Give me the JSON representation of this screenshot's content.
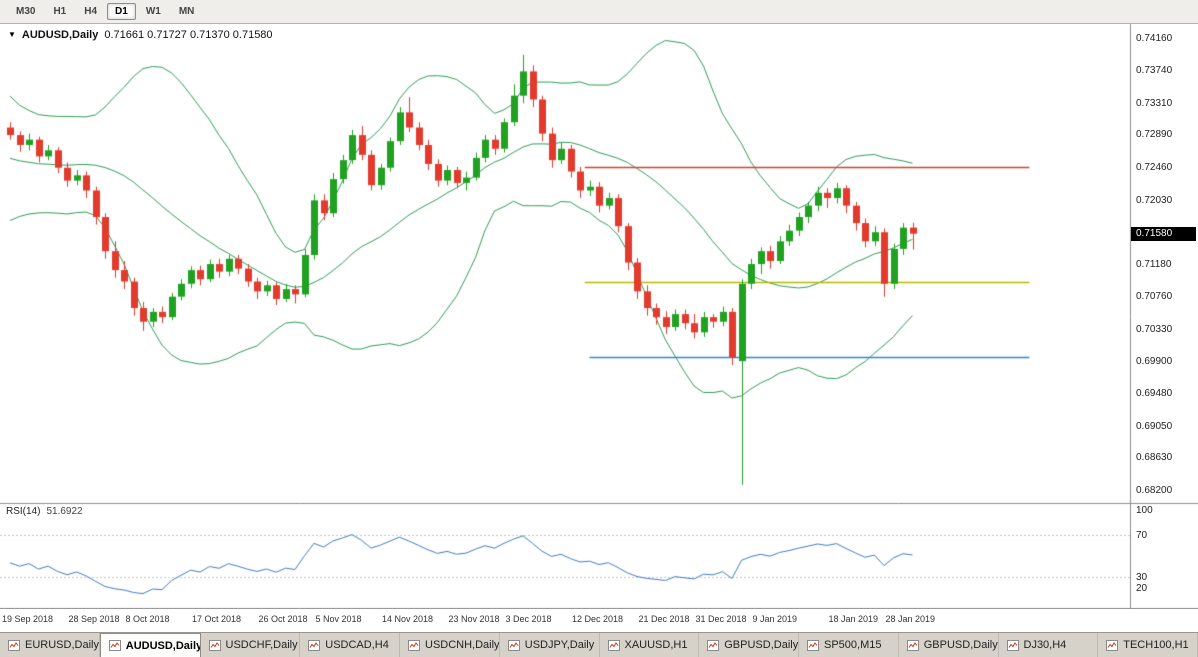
{
  "toolbar": {
    "buttons": [
      {
        "label": "M30",
        "active": false
      },
      {
        "label": "H1",
        "active": false
      },
      {
        "label": "H4",
        "active": false
      },
      {
        "label": "D1",
        "active": true
      },
      {
        "label": "W1",
        "active": false
      },
      {
        "label": "MN",
        "active": false
      }
    ]
  },
  "chart": {
    "title": {
      "symbol": "AUDUSD,Daily",
      "ohlc": "0.71661 0.71727 0.71370 0.71580"
    },
    "current_price": "0.71580",
    "price_axis": [
      "0.74160",
      "0.73740",
      "0.73310",
      "0.72890",
      "0.72460",
      "0.72030",
      "0.71180",
      "0.70760",
      "0.70330",
      "0.69900",
      "0.69480",
      "0.69050",
      "0.68630",
      "0.68200"
    ],
    "colors": {
      "up": "#21a121",
      "down": "#e23b2e",
      "bollinger": "#2e9b57",
      "rsi_line": "#3f7cc4",
      "hline_red": "#cc4034",
      "hline_yellow": "#b9b900",
      "hline_blue": "#2e86d6",
      "price_tag_bg": "#000000"
    }
  },
  "rsi": {
    "label": "RSI(14)",
    "value": "51.6922",
    "axis_labels": [
      "100",
      "70",
      "30",
      "20"
    ]
  },
  "tabs": [
    {
      "label": "EURUSD,Daily",
      "active": false
    },
    {
      "label": "AUDUSD,Daily",
      "active": true
    },
    {
      "label": "USDCHF,Daily",
      "active": false
    },
    {
      "label": "USDCAD,H4",
      "active": false
    },
    {
      "label": "USDCNH,Daily",
      "active": false
    },
    {
      "label": "USDJPY,Daily",
      "active": false
    },
    {
      "label": "XAUUSD,H1",
      "active": false
    },
    {
      "label": "GBPUSD,Daily",
      "active": false
    },
    {
      "label": "SP500,M15",
      "active": false
    },
    {
      "label": "GBPUSD,Daily",
      "active": false
    },
    {
      "label": "DJ30,H4",
      "active": false
    },
    {
      "label": "TECH100,H1",
      "active": false
    }
  ],
  "chart_data": {
    "type": "candlestick",
    "symbol": "AUDUSD",
    "timeframe": "Daily",
    "title": "AUDUSD,Daily",
    "current_bar": {
      "open": 0.71661,
      "high": 0.71727,
      "low": 0.7137,
      "close": 0.7158
    },
    "y_axis": {
      "min": 0.6803,
      "max": 0.74345,
      "ticks": [
        0.7416,
        0.7374,
        0.7331,
        0.7289,
        0.7246,
        0.7203,
        0.7118,
        0.7076,
        0.7033,
        0.699,
        0.6948,
        0.6905,
        0.6863,
        0.682
      ]
    },
    "x_labels": [
      {
        "index": 0,
        "label": "19 Sep 2018"
      },
      {
        "index": 7,
        "label": "28 Sep 2018"
      },
      {
        "index": 13,
        "label": "8 Oct 2018"
      },
      {
        "index": 20,
        "label": "17 Oct 2018"
      },
      {
        "index": 27,
        "label": "26 Oct 2018"
      },
      {
        "index": 33,
        "label": "5 Nov 2018"
      },
      {
        "index": 40,
        "label": "14 Nov 2018"
      },
      {
        "index": 47,
        "label": "23 Nov 2018"
      },
      {
        "index": 53,
        "label": "3 Dec 2018"
      },
      {
        "index": 60,
        "label": "12 Dec 2018"
      },
      {
        "index": 67,
        "label": "21 Dec 2018"
      },
      {
        "index": 73,
        "label": "31 Dec 2018"
      },
      {
        "index": 79,
        "label": "9 Jan 2019"
      },
      {
        "index": 87,
        "label": "18 Jan 2019"
      },
      {
        "index": 93,
        "label": "28 Jan 2019"
      }
    ],
    "ohlc": [
      [
        0.7298,
        0.7305,
        0.7282,
        0.7288
      ],
      [
        0.7288,
        0.7293,
        0.7266,
        0.7275
      ],
      [
        0.7275,
        0.729,
        0.7268,
        0.7282
      ],
      [
        0.7282,
        0.7286,
        0.7252,
        0.726
      ],
      [
        0.726,
        0.7275,
        0.7255,
        0.7268
      ],
      [
        0.7268,
        0.7272,
        0.7238,
        0.7245
      ],
      [
        0.7245,
        0.7252,
        0.722,
        0.7228
      ],
      [
        0.7228,
        0.7242,
        0.7222,
        0.7235
      ],
      [
        0.7235,
        0.724,
        0.7205,
        0.7215
      ],
      [
        0.7215,
        0.722,
        0.717,
        0.718
      ],
      [
        0.718,
        0.7185,
        0.7125,
        0.7135
      ],
      [
        0.7135,
        0.7148,
        0.71,
        0.711
      ],
      [
        0.711,
        0.7122,
        0.7085,
        0.7095
      ],
      [
        0.7095,
        0.71,
        0.705,
        0.706
      ],
      [
        0.706,
        0.7068,
        0.703,
        0.7042
      ],
      [
        0.7042,
        0.706,
        0.7035,
        0.7055
      ],
      [
        0.7055,
        0.7062,
        0.704,
        0.7048
      ],
      [
        0.7048,
        0.708,
        0.7044,
        0.7075
      ],
      [
        0.7075,
        0.7098,
        0.707,
        0.7092
      ],
      [
        0.7092,
        0.7115,
        0.7086,
        0.711
      ],
      [
        0.711,
        0.7116,
        0.709,
        0.7098
      ],
      [
        0.7098,
        0.7124,
        0.7094,
        0.7118
      ],
      [
        0.7118,
        0.7125,
        0.71,
        0.7108
      ],
      [
        0.7108,
        0.713,
        0.7102,
        0.7125
      ],
      [
        0.7125,
        0.713,
        0.7105,
        0.7112
      ],
      [
        0.7112,
        0.7118,
        0.7088,
        0.7095
      ],
      [
        0.7095,
        0.71,
        0.7072,
        0.7082
      ],
      [
        0.7082,
        0.7096,
        0.7076,
        0.709
      ],
      [
        0.709,
        0.7094,
        0.7064,
        0.7072
      ],
      [
        0.7072,
        0.7092,
        0.7068,
        0.7085
      ],
      [
        0.7085,
        0.709,
        0.7066,
        0.7078
      ],
      [
        0.7078,
        0.7138,
        0.7074,
        0.713
      ],
      [
        0.713,
        0.721,
        0.7124,
        0.7202
      ],
      [
        0.7202,
        0.721,
        0.7176,
        0.7185
      ],
      [
        0.7185,
        0.7238,
        0.718,
        0.723
      ],
      [
        0.723,
        0.7262,
        0.7224,
        0.7255
      ],
      [
        0.7255,
        0.7295,
        0.725,
        0.7288
      ],
      [
        0.7288,
        0.73,
        0.7255,
        0.7262
      ],
      [
        0.7262,
        0.7268,
        0.7215,
        0.7222
      ],
      [
        0.7222,
        0.725,
        0.7216,
        0.7245
      ],
      [
        0.7245,
        0.7285,
        0.724,
        0.728
      ],
      [
        0.728,
        0.7325,
        0.7275,
        0.7318
      ],
      [
        0.7318,
        0.7338,
        0.7292,
        0.7298
      ],
      [
        0.7298,
        0.7305,
        0.7268,
        0.7275
      ],
      [
        0.7275,
        0.7282,
        0.7242,
        0.725
      ],
      [
        0.725,
        0.7256,
        0.722,
        0.7228
      ],
      [
        0.7228,
        0.7248,
        0.7222,
        0.7242
      ],
      [
        0.7242,
        0.7246,
        0.7218,
        0.7225
      ],
      [
        0.7225,
        0.724,
        0.7215,
        0.7232
      ],
      [
        0.7232,
        0.7265,
        0.7228,
        0.7258
      ],
      [
        0.7258,
        0.7288,
        0.7252,
        0.7282
      ],
      [
        0.7282,
        0.7288,
        0.7262,
        0.727
      ],
      [
        0.727,
        0.731,
        0.7265,
        0.7305
      ],
      [
        0.7305,
        0.7355,
        0.73,
        0.734
      ],
      [
        0.734,
        0.7394,
        0.733,
        0.7372
      ],
      [
        0.7372,
        0.738,
        0.7325,
        0.7335
      ],
      [
        0.7335,
        0.734,
        0.728,
        0.729
      ],
      [
        0.729,
        0.7298,
        0.7245,
        0.7255
      ],
      [
        0.7255,
        0.7278,
        0.725,
        0.727
      ],
      [
        0.727,
        0.7275,
        0.7232,
        0.724
      ],
      [
        0.724,
        0.7246,
        0.7205,
        0.7215
      ],
      [
        0.7215,
        0.7228,
        0.7208,
        0.722
      ],
      [
        0.722,
        0.7226,
        0.7186,
        0.7195
      ],
      [
        0.7195,
        0.7212,
        0.719,
        0.7205
      ],
      [
        0.7205,
        0.721,
        0.716,
        0.7168
      ],
      [
        0.7168,
        0.7172,
        0.711,
        0.712
      ],
      [
        0.712,
        0.7126,
        0.7072,
        0.7082
      ],
      [
        0.7082,
        0.709,
        0.705,
        0.706
      ],
      [
        0.706,
        0.7066,
        0.7038,
        0.7048
      ],
      [
        0.7048,
        0.7056,
        0.7026,
        0.7035
      ],
      [
        0.7035,
        0.7058,
        0.703,
        0.7052
      ],
      [
        0.7052,
        0.7058,
        0.7032,
        0.704
      ],
      [
        0.704,
        0.7052,
        0.702,
        0.7028
      ],
      [
        0.7028,
        0.7055,
        0.7022,
        0.7048
      ],
      [
        0.7048,
        0.7052,
        0.7034,
        0.7042
      ],
      [
        0.7042,
        0.7062,
        0.7036,
        0.7055
      ],
      [
        0.7055,
        0.706,
        0.6985,
        0.6995
      ],
      [
        0.699,
        0.7098,
        0.6827,
        0.7092
      ],
      [
        0.7092,
        0.7125,
        0.7085,
        0.7118
      ],
      [
        0.7118,
        0.714,
        0.7105,
        0.7135
      ],
      [
        0.7135,
        0.7142,
        0.7112,
        0.7122
      ],
      [
        0.7122,
        0.7155,
        0.7118,
        0.7148
      ],
      [
        0.7148,
        0.717,
        0.7142,
        0.7162
      ],
      [
        0.7162,
        0.7186,
        0.7155,
        0.718
      ],
      [
        0.718,
        0.72,
        0.7172,
        0.7195
      ],
      [
        0.7195,
        0.722,
        0.7188,
        0.7212
      ],
      [
        0.7212,
        0.7218,
        0.7192,
        0.7205
      ],
      [
        0.7205,
        0.7225,
        0.7198,
        0.7218
      ],
      [
        0.7218,
        0.7222,
        0.7185,
        0.7195
      ],
      [
        0.7195,
        0.72,
        0.7162,
        0.7172
      ],
      [
        0.7172,
        0.7178,
        0.714,
        0.7148
      ],
      [
        0.7148,
        0.7168,
        0.7142,
        0.716
      ],
      [
        0.716,
        0.7165,
        0.7075,
        0.7092
      ],
      [
        0.7092,
        0.7145,
        0.7085,
        0.7138
      ],
      [
        0.7138,
        0.7172,
        0.713,
        0.7166
      ],
      [
        0.71661,
        0.71727,
        0.7137,
        0.7158
      ]
    ],
    "horizontal_lines": [
      {
        "price": 0.7246,
        "color": "#cc4034",
        "from_index": 60.5,
        "to_index": 107.3
      },
      {
        "price": 0.7095,
        "color": "#b9b900",
        "from_index": 60.5,
        "to_index": 107.3
      },
      {
        "price": 0.6995,
        "color": "#2e86d6",
        "from_index": 61,
        "to_index": 107.3
      }
    ],
    "indicators": {
      "bollinger": {
        "period": 20,
        "deviation": 2,
        "color": "#2e9b57"
      },
      "rsi": {
        "period": 14,
        "value": 51.6922,
        "levels": [
          70,
          30
        ],
        "range": [
          0,
          100
        ],
        "color": "#3f7cc4"
      },
      "history_seed_closes": [
        0.733,
        0.734,
        0.732,
        0.73,
        0.728,
        0.726,
        0.724,
        0.722,
        0.721,
        0.72,
        0.7195,
        0.7205,
        0.7215,
        0.723,
        0.725,
        0.726,
        0.727,
        0.728,
        0.729,
        0.7295
      ]
    }
  }
}
